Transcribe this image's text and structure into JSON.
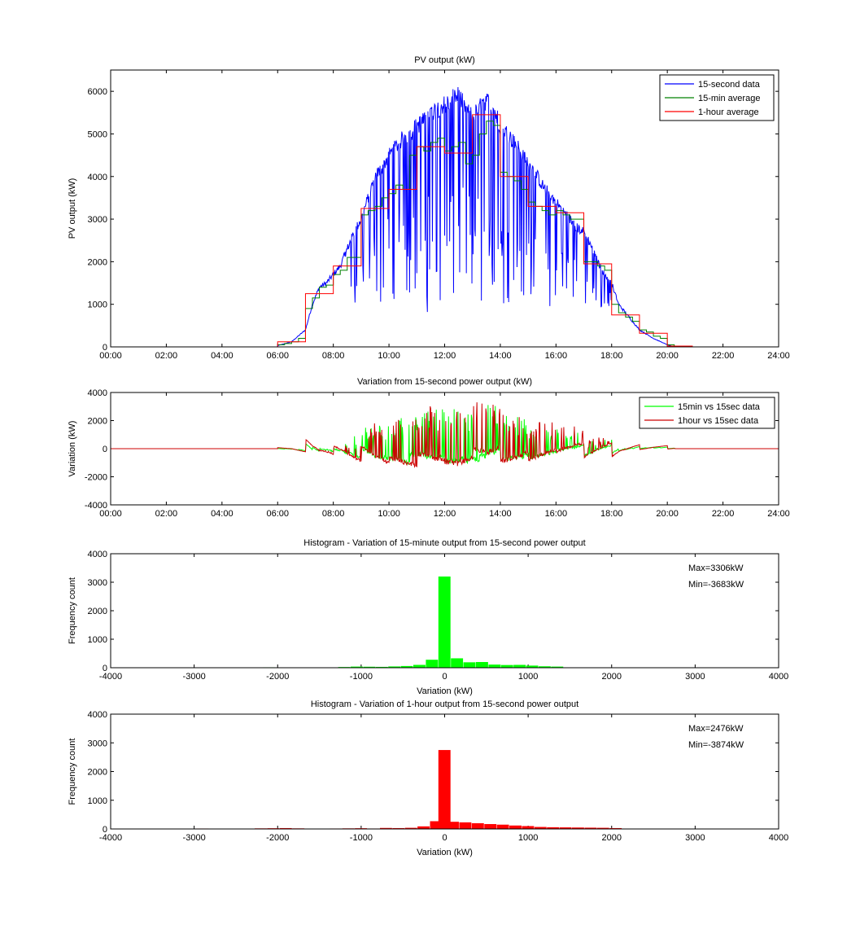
{
  "chart_data": [
    {
      "type": "line",
      "title": "PV output (kW)",
      "xlabel": "",
      "ylabel": "PV output (kW)",
      "xlim": [
        "00:00",
        "24:00"
      ],
      "ylim": [
        0,
        6500
      ],
      "x_ticks": [
        "00:00",
        "02:00",
        "04:00",
        "06:00",
        "08:00",
        "10:00",
        "12:00",
        "14:00",
        "16:00",
        "18:00",
        "20:00",
        "22:00",
        "24:00"
      ],
      "y_ticks": [
        0,
        1000,
        2000,
        3000,
        4000,
        5000,
        6000
      ],
      "legend_position": "top-right",
      "series": [
        {
          "name": "15-second data",
          "color": "#0000ff",
          "x_hours": [
            6.0,
            6.5,
            7.0,
            7.25,
            7.5,
            7.75,
            8.0,
            8.25,
            8.5,
            8.75,
            9.0,
            9.25,
            9.5,
            9.75,
            10.0,
            10.25,
            10.5,
            10.75,
            11.0,
            11.25,
            11.5,
            11.75,
            12.0,
            12.25,
            12.5,
            12.75,
            13.0,
            13.25,
            13.5,
            13.75,
            14.0,
            14.25,
            14.5,
            14.75,
            15.0,
            15.25,
            15.5,
            15.75,
            16.0,
            16.25,
            16.5,
            16.75,
            17.0,
            17.25,
            17.5,
            17.75,
            18.0,
            18.25,
            18.5,
            18.75,
            19.0,
            19.5,
            20.0,
            20.25
          ],
          "values": [
            30,
            120,
            400,
            1000,
            1400,
            1500,
            1700,
            1900,
            2300,
            2700,
            3000,
            3500,
            4000,
            4200,
            4500,
            4700,
            4900,
            5000,
            5200,
            5300,
            5500,
            5600,
            5700,
            5800,
            5900,
            5600,
            5400,
            5600,
            5800,
            5600,
            5200,
            5000,
            4800,
            4600,
            4300,
            4100,
            3800,
            3600,
            3400,
            3200,
            3000,
            2800,
            2700,
            2400,
            2000,
            1700,
            1500,
            1000,
            800,
            600,
            400,
            200,
            50,
            0
          ],
          "dips": [
            [
              8.6,
              900
            ],
            [
              8.8,
              1000
            ],
            [
              9.1,
              1100
            ],
            [
              9.4,
              1000
            ],
            [
              10.2,
              1400
            ],
            [
              10.6,
              1100
            ],
            [
              11.1,
              800
            ],
            [
              11.4,
              900
            ],
            [
              11.8,
              700
            ],
            [
              12.1,
              1000
            ],
            [
              12.4,
              800
            ],
            [
              12.7,
              900
            ],
            [
              13.1,
              700
            ],
            [
              13.4,
              800
            ],
            [
              13.7,
              900
            ],
            [
              14.2,
              1000
            ],
            [
              14.5,
              900
            ],
            [
              14.9,
              1200
            ],
            [
              15.4,
              1000
            ],
            [
              15.9,
              900
            ],
            [
              16.4,
              1100
            ],
            [
              16.9,
              1200
            ],
            [
              17.3,
              1500
            ],
            [
              17.8,
              1800
            ]
          ]
        },
        {
          "name": "15-min average",
          "color": "#008000",
          "x_hours": [
            6.0,
            6.25,
            6.5,
            6.75,
            7.0,
            7.25,
            7.5,
            7.75,
            8.0,
            8.25,
            8.5,
            8.75,
            9.0,
            9.25,
            9.5,
            9.75,
            10.0,
            10.25,
            10.5,
            10.75,
            11.0,
            11.25,
            11.5,
            11.75,
            12.0,
            12.25,
            12.5,
            12.75,
            13.0,
            13.25,
            13.5,
            13.75,
            14.0,
            14.25,
            14.5,
            14.75,
            15.0,
            15.25,
            15.5,
            15.75,
            16.0,
            16.25,
            16.5,
            16.75,
            17.0,
            17.25,
            17.5,
            17.75,
            18.0,
            18.25,
            18.5,
            18.75,
            19.0,
            19.25,
            19.5,
            19.75,
            20.0,
            20.25
          ],
          "values": [
            50,
            80,
            120,
            200,
            900,
            1150,
            1400,
            1450,
            1700,
            1800,
            2100,
            2100,
            3100,
            3200,
            3300,
            3500,
            3600,
            3800,
            3700,
            4500,
            4700,
            4600,
            4800,
            4900,
            4600,
            4700,
            4800,
            4300,
            4500,
            5000,
            5300,
            5200,
            4100,
            4000,
            3900,
            3700,
            3400,
            3300,
            3200,
            3100,
            3200,
            3100,
            3000,
            3000,
            2000,
            2000,
            1900,
            1800,
            1000,
            800,
            700,
            600,
            400,
            350,
            250,
            200,
            50,
            0
          ]
        },
        {
          "name": "1-hour average",
          "color": "#ff0000",
          "x_hours": [
            6,
            7,
            8,
            9,
            10,
            11,
            12,
            13,
            14,
            15,
            16,
            17,
            18,
            19,
            20
          ],
          "values": [
            120,
            1250,
            1900,
            3250,
            3700,
            4700,
            4550,
            5450,
            4000,
            3300,
            3150,
            1950,
            750,
            320,
            20
          ]
        }
      ]
    },
    {
      "type": "line",
      "title": "Variation from 15-second power output (kW)",
      "xlabel": "",
      "ylabel": "Variation (kW)",
      "xlim": [
        "00:00",
        "24:00"
      ],
      "ylim": [
        -4000,
        4000
      ],
      "x_ticks": [
        "00:00",
        "02:00",
        "04:00",
        "06:00",
        "08:00",
        "10:00",
        "12:00",
        "14:00",
        "16:00",
        "18:00",
        "20:00",
        "22:00",
        "24:00"
      ],
      "y_ticks": [
        -4000,
        -2000,
        0,
        2000,
        4000
      ],
      "legend_position": "top-right",
      "series": [
        {
          "name": "15min vs 15sec data",
          "color": "#00ff00",
          "max": 3306,
          "min": -3683
        },
        {
          "name": "1hour vs 15sec data",
          "color": "#cc0000",
          "max": 2476,
          "min": -3874
        }
      ]
    },
    {
      "type": "bar",
      "title": "Histogram - Variation of 15-minute output from 15-second power output",
      "xlabel": "Variation (kW)",
      "ylabel": "Frequency count",
      "xlim": [
        -4000,
        4000
      ],
      "ylim": [
        0,
        4000
      ],
      "x_ticks": [
        -4000,
        -3000,
        -2000,
        -1000,
        0,
        1000,
        2000,
        3000,
        4000
      ],
      "y_ticks": [
        0,
        1000,
        2000,
        3000,
        4000
      ],
      "color": "#00ff00",
      "annotations": [
        "Max=3306kW",
        "Min=-3683kW"
      ],
      "bin_centers": [
        -2100,
        -1950,
        -1350,
        -1200,
        -1050,
        -900,
        -750,
        -600,
        -450,
        -300,
        -150,
        0,
        150,
        300,
        450,
        600,
        750,
        900,
        1050,
        1200,
        1350
      ],
      "values": [
        15,
        10,
        12,
        25,
        40,
        35,
        30,
        45,
        60,
        100,
        280,
        3200,
        330,
        190,
        200,
        110,
        95,
        100,
        75,
        50,
        40
      ]
    },
    {
      "type": "bar",
      "title": "Histogram - Variation of 1-hour output from 15-second power output",
      "xlabel": "Variation (kW)",
      "ylabel": "Frequency count",
      "xlim": [
        -4000,
        4000
      ],
      "ylim": [
        0,
        4000
      ],
      "x_ticks": [
        -4000,
        -3000,
        -2000,
        -1000,
        0,
        1000,
        2000,
        3000,
        4000
      ],
      "y_ticks": [
        0,
        1000,
        2000,
        3000,
        4000
      ],
      "color": "#ff0000",
      "annotations": [
        "Max=2476kW",
        "Min=-3874kW"
      ],
      "bin_centers": [
        -2900,
        -2200,
        -2050,
        -1900,
        -1750,
        -1300,
        -1150,
        -1000,
        -850,
        -700,
        -550,
        -400,
        -250,
        -100,
        0,
        100,
        250,
        400,
        550,
        700,
        850,
        1000,
        1150,
        1300,
        1450,
        1600,
        1750,
        1900,
        2050
      ],
      "values": [
        15,
        20,
        25,
        30,
        20,
        15,
        20,
        25,
        15,
        35,
        30,
        40,
        90,
        270,
        2750,
        250,
        230,
        200,
        170,
        150,
        120,
        100,
        70,
        60,
        55,
        50,
        45,
        40,
        30
      ]
    }
  ]
}
